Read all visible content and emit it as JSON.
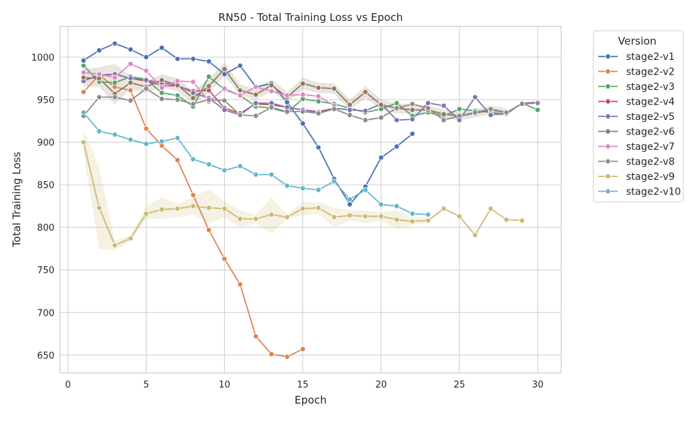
{
  "chart_data": {
    "type": "line",
    "title": "RN50 - Total Training Loss vs Epoch",
    "xlabel": "Epoch",
    "ylabel": "Total Training Loss",
    "xlim": [
      -0.5,
      31.5
    ],
    "ylim": [
      629,
      1036
    ],
    "xticks": [
      0,
      5,
      10,
      15,
      20,
      25,
      30
    ],
    "yticks": [
      650,
      700,
      750,
      800,
      850,
      900,
      950,
      1000
    ],
    "grid": true,
    "legend": {
      "title": "Version",
      "placement": "outside-top-right"
    },
    "series": [
      {
        "name": "stage2-v1",
        "color": "#4c72b0",
        "x": [
          1,
          2,
          3,
          4,
          5,
          6,
          7,
          8,
          9,
          10,
          11,
          12,
          13,
          14,
          15,
          16,
          17,
          18,
          19,
          20,
          21,
          22
        ],
        "y": [
          996,
          1008,
          1016,
          1009,
          1000,
          1011,
          998,
          998,
          995,
          980,
          990,
          965,
          969,
          947,
          922,
          894,
          857,
          827,
          848,
          882,
          895,
          910
        ]
      },
      {
        "name": "stage2-v2",
        "color": "#dd8452",
        "x": [
          1,
          2,
          3,
          4,
          5,
          6,
          7,
          8,
          9,
          10,
          11,
          12,
          13,
          14,
          15
        ],
        "y": [
          959,
          979,
          965,
          961,
          916,
          896,
          879,
          838,
          797,
          763,
          733,
          672,
          651,
          648,
          657
        ]
      },
      {
        "name": "stage2-v3",
        "color": "#55a868",
        "x": [
          1,
          2,
          3,
          4,
          5,
          6,
          7,
          8,
          9,
          10,
          11,
          12,
          13,
          14,
          15,
          16,
          17,
          18,
          19,
          20,
          21,
          22,
          23,
          24,
          25,
          26,
          27,
          28,
          29,
          30
        ],
        "y": [
          990,
          971,
          970,
          977,
          974,
          958,
          955,
          942,
          977,
          962,
          955,
          942,
          940,
          935,
          951,
          948,
          945,
          940,
          935,
          939,
          946,
          931,
          935,
          931,
          939,
          937,
          935,
          933,
          946,
          938
        ]
      },
      {
        "name": "stage2-v4",
        "color": "#c44e52",
        "x": [
          1,
          2,
          3,
          4,
          5,
          6,
          7,
          8,
          9,
          10,
          11,
          12,
          13,
          14,
          15,
          16,
          17,
          18
        ],
        "y": [
          973,
          978,
          980,
          975,
          972,
          967,
          966,
          960,
          961,
          940,
          934,
          945,
          944,
          941,
          938,
          936,
          940,
          938
        ]
      },
      {
        "name": "stage2-v5",
        "color": "#8172b3",
        "x": [
          1,
          2,
          3,
          4,
          5,
          6,
          7,
          8,
          9,
          10,
          11,
          12,
          13,
          14,
          15,
          16,
          17,
          18,
          19,
          20,
          21,
          22,
          23,
          24,
          25,
          26,
          27,
          28,
          29,
          30
        ],
        "y": [
          972,
          979,
          980,
          975,
          973,
          970,
          967,
          958,
          952,
          938,
          932,
          946,
          946,
          941,
          938,
          935,
          940,
          938,
          937,
          945,
          926,
          927,
          946,
          943,
          926,
          953,
          932,
          934,
          946,
          947
        ]
      },
      {
        "name": "stage2-v6",
        "color": "#937860",
        "x": [
          1,
          2,
          3,
          4,
          5,
          6,
          7,
          8,
          9,
          10,
          11,
          12,
          13,
          14,
          15,
          16,
          17,
          18,
          19,
          20,
          21,
          22,
          23,
          24,
          25,
          26,
          27,
          28
        ],
        "y": [
          976,
          975,
          957,
          970,
          965,
          973,
          967,
          952,
          966,
          986,
          961,
          956,
          967,
          953,
          969,
          964,
          963,
          944,
          959,
          944,
          940,
          938,
          938,
          933,
          931,
          934,
          938,
          935
        ]
      },
      {
        "name": "stage2-v7",
        "color": "#da8bc3",
        "x": [
          1,
          2,
          3,
          4,
          5,
          6,
          7,
          8,
          9,
          10,
          11,
          12,
          13,
          14,
          15,
          16,
          17
        ],
        "y": [
          982,
          980,
          976,
          992,
          984,
          964,
          972,
          971,
          948,
          963,
          955,
          965,
          960,
          955,
          956,
          954,
          943
        ]
      },
      {
        "name": "stage2-v8",
        "color": "#8c8c8c",
        "x": [
          1,
          2,
          3,
          4,
          5,
          6,
          7,
          8,
          9,
          10,
          11,
          12,
          13,
          14,
          15,
          16,
          17,
          18,
          19,
          20,
          21,
          22,
          23,
          24,
          25,
          26,
          27,
          28,
          29,
          30
        ],
        "y": [
          931,
          953,
          953,
          949,
          963,
          951,
          950,
          945,
          950,
          949,
          932,
          931,
          941,
          936,
          936,
          934,
          939,
          932,
          926,
          929,
          940,
          945,
          940,
          926,
          931,
          935,
          939,
          935,
          945,
          946
        ]
      },
      {
        "name": "stage2-v9",
        "color": "#ccb974",
        "x": [
          1,
          2,
          3,
          4,
          5,
          6,
          7,
          8,
          9,
          10,
          11,
          12,
          13,
          14,
          15,
          16,
          17,
          18,
          19,
          20,
          21,
          22,
          23,
          24,
          25,
          26,
          27,
          28,
          29
        ],
        "y": [
          900,
          823,
          779,
          787,
          816,
          821,
          822,
          825,
          823,
          822,
          810,
          810,
          815,
          812,
          822,
          823,
          812,
          814,
          813,
          813,
          809,
          807,
          808,
          822,
          813,
          791,
          822,
          809,
          808
        ]
      },
      {
        "name": "stage2-v10",
        "color": "#64b5cd",
        "x": [
          1,
          2,
          3,
          4,
          5,
          6,
          7,
          8,
          9,
          10,
          11,
          12,
          13,
          14,
          15,
          16,
          17,
          18,
          19,
          20,
          21,
          22,
          23
        ],
        "y": [
          935,
          913,
          909,
          903,
          898,
          901,
          905,
          880,
          874,
          867,
          872,
          862,
          862,
          849,
          846,
          844,
          854,
          833,
          844,
          827,
          825,
          816,
          815
        ]
      }
    ],
    "bands": [
      {
        "series": "stage2-v9",
        "x": [
          1,
          2,
          3,
          4,
          5,
          6,
          7,
          8,
          9,
          10,
          11,
          12,
          13,
          14,
          15,
          16,
          17,
          18,
          19,
          20,
          21,
          22,
          23
        ],
        "low": [
          886,
          775,
          773,
          784,
          810,
          810,
          812,
          815,
          805,
          812,
          800,
          805,
          793,
          810,
          814,
          816,
          800,
          808,
          805,
          808,
          798,
          803,
          805
        ],
        "high": [
          915,
          870,
          785,
          790,
          825,
          835,
          828,
          835,
          845,
          830,
          820,
          815,
          835,
          815,
          830,
          830,
          823,
          820,
          820,
          818,
          820,
          812,
          812
        ]
      },
      {
        "series": "stage2-v6",
        "x": [
          1,
          2,
          3,
          4,
          5,
          6,
          7,
          8,
          9,
          10,
          11,
          12,
          13,
          14,
          15,
          16,
          17,
          18,
          19,
          20,
          21,
          22,
          23,
          24,
          25,
          26,
          27,
          28
        ],
        "low": [
          966,
          965,
          945,
          962,
          958,
          965,
          960,
          945,
          958,
          978,
          955,
          950,
          960,
          947,
          962,
          958,
          957,
          938,
          952,
          938,
          934,
          933,
          933,
          928,
          926,
          929,
          933,
          930
        ],
        "high": [
          986,
          988,
          992,
          978,
          972,
          980,
          975,
          960,
          975,
          994,
          968,
          962,
          974,
          959,
          976,
          970,
          969,
          950,
          966,
          950,
          946,
          944,
          943,
          938,
          936,
          939,
          943,
          940
        ]
      }
    ]
  }
}
